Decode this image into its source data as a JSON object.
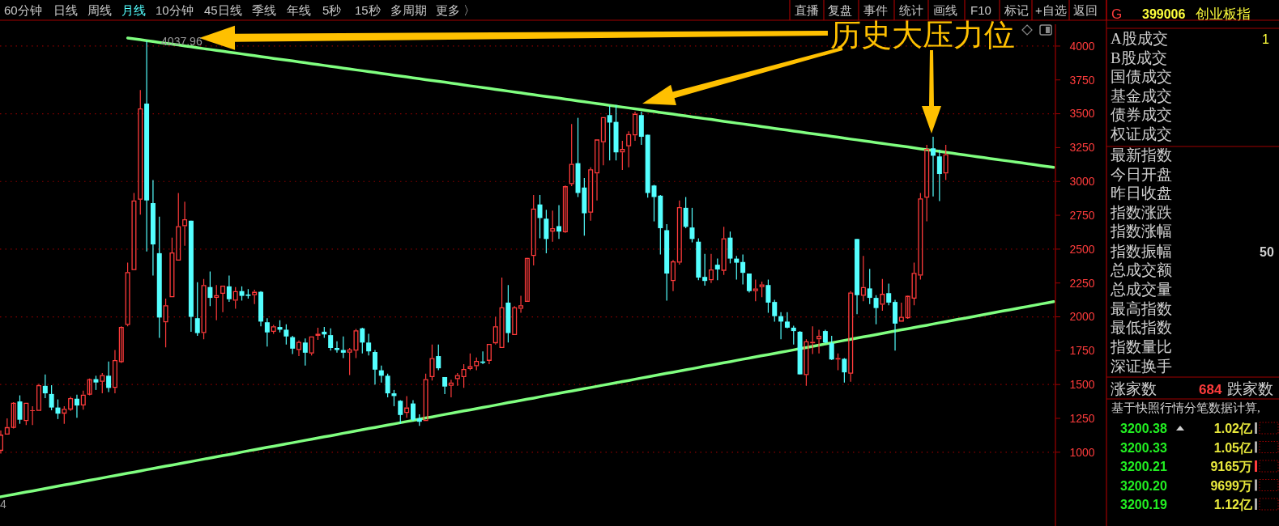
{
  "chart_data": [
    {
      "type": "candlestick",
      "categories": [
        null,
        null,
        null,
        null,
        null,
        null,
        null,
        null,
        null,
        null,
        null,
        null,
        null,
        null,
        null,
        null,
        null,
        null,
        null,
        null,
        null,
        null,
        null,
        null,
        null,
        null,
        null,
        null,
        null,
        null,
        null,
        null,
        null,
        null,
        null,
        null,
        null,
        null,
        null,
        null,
        null,
        null,
        null,
        null,
        null,
        null,
        null,
        null,
        null,
        null,
        null,
        null,
        null,
        null,
        null,
        null,
        null,
        null,
        null,
        null,
        null,
        null,
        null,
        null,
        null,
        null,
        null,
        null,
        null,
        null,
        null,
        null,
        null,
        null,
        null,
        null,
        null,
        null,
        null,
        null,
        null,
        null,
        null,
        null,
        null,
        null,
        null,
        null,
        null,
        null,
        null,
        null,
        null,
        null,
        null,
        null,
        null,
        null,
        null,
        null,
        null,
        null,
        null,
        null,
        null,
        null,
        null,
        null,
        null,
        null,
        null,
        null,
        null,
        null,
        null,
        null,
        null,
        null,
        null,
        null,
        null,
        null,
        null,
        null,
        null,
        null,
        null,
        null,
        null,
        null,
        null,
        null,
        null,
        null,
        null,
        null,
        null,
        null,
        null,
        null,
        null,
        null,
        null,
        null,
        null,
        null,
        null,
        null,
        null,
        null,
        null,
        null,
        null,
        null,
        null,
        null,
        null,
        null,
        null,
        null,
        null,
        null,
        null,
        null,
        null,
        null,
        null
      ],
      "ohlc": [
        [
          1010,
          1160,
          990,
          1130
        ],
        [
          1130,
          1250,
          1125,
          1185
        ],
        [
          1180,
          1370,
          1175,
          1365
        ],
        [
          1375,
          1420,
          1210,
          1240
        ],
        [
          1230,
          1370,
          1200,
          1365
        ],
        [
          1305,
          1340,
          1200,
          1310
        ],
        [
          1305,
          1505,
          1300,
          1495
        ],
        [
          1490,
          1575,
          1400,
          1435
        ],
        [
          1430,
          1495,
          1310,
          1330
        ],
        [
          1330,
          1390,
          1245,
          1285
        ],
        [
          1285,
          1340,
          1210,
          1320
        ],
        [
          1315,
          1410,
          1305,
          1400
        ],
        [
          1395,
          1425,
          1255,
          1345
        ],
        [
          1345,
          1455,
          1315,
          1425
        ],
        [
          1425,
          1545,
          1420,
          1540
        ],
        [
          1540,
          1565,
          1460,
          1515
        ],
        [
          1520,
          1585,
          1435,
          1570
        ],
        [
          1565,
          1670,
          1445,
          1475
        ],
        [
          1475,
          1755,
          1435,
          1680
        ],
        [
          1665,
          1930,
          1660,
          1925
        ],
        [
          1940,
          2400,
          1930,
          2330
        ],
        [
          2345,
          2915,
          2340,
          2860
        ],
        [
          2865,
          3675,
          2755,
          3540
        ],
        [
          3575,
          4037.96,
          2483,
          2860
        ],
        [
          2840,
          3010,
          2305,
          2535
        ],
        [
          2470,
          2740,
          1845,
          1995
        ],
        [
          1960,
          2135,
          1775,
          2085
        ],
        [
          2145,
          2585,
          2140,
          2475
        ],
        [
          2415,
          2915,
          2410,
          2670
        ],
        [
          2670,
          2850,
          2525,
          2720
        ],
        [
          2710,
          2710,
          1890,
          2000
        ],
        [
          1990,
          2255,
          1860,
          1880
        ],
        [
          1880,
          2280,
          1835,
          2235
        ],
        [
          2220,
          2335,
          2080,
          2140
        ],
        [
          2140,
          2235,
          1975,
          2160
        ],
        [
          2170,
          2235,
          2035,
          2230
        ],
        [
          2225,
          2305,
          2110,
          2130
        ],
        [
          2120,
          2220,
          2060,
          2190
        ],
        [
          2190,
          2225,
          2120,
          2155
        ],
        [
          2165,
          2205,
          2135,
          2155
        ],
        [
          2160,
          2200,
          2095,
          2185
        ],
        [
          2185,
          2190,
          1930,
          1965
        ],
        [
          1960,
          1990,
          1780,
          1885
        ],
        [
          1890,
          1940,
          1875,
          1930
        ],
        [
          1925,
          1975,
          1885,
          1905
        ],
        [
          1905,
          1945,
          1795,
          1855
        ],
        [
          1850,
          1860,
          1725,
          1765
        ],
        [
          1755,
          1825,
          1710,
          1815
        ],
        [
          1810,
          1840,
          1640,
          1735
        ],
        [
          1730,
          1855,
          1715,
          1855
        ],
        [
          1860,
          1920,
          1830,
          1875
        ],
        [
          1890,
          1925,
          1845,
          1870
        ],
        [
          1865,
          1915,
          1750,
          1770
        ],
        [
          1770,
          1820,
          1735,
          1755
        ],
        [
          1755,
          1855,
          1695,
          1735
        ],
        [
          1735,
          1770,
          1570,
          1760
        ],
        [
          1750,
          1910,
          1695,
          1900
        ],
        [
          1915,
          1920,
          1730,
          1810
        ],
        [
          1810,
          1875,
          1715,
          1745
        ],
        [
          1740,
          1755,
          1500,
          1610
        ],
        [
          1605,
          1640,
          1515,
          1565
        ],
        [
          1565,
          1580,
          1405,
          1435
        ],
        [
          1435,
          1460,
          1340,
          1415
        ],
        [
          1380,
          1385,
          1210,
          1275
        ],
        [
          1290,
          1415,
          1255,
          1330
        ],
        [
          1360,
          1385,
          1230,
          1240
        ],
        [
          1250,
          1280,
          1195,
          1225
        ],
        [
          1230,
          1580,
          1225,
          1540
        ],
        [
          1555,
          1795,
          1530,
          1695
        ],
        [
          1710,
          1795,
          1605,
          1620
        ],
        [
          1555,
          1555,
          1430,
          1485
        ],
        [
          1490,
          1535,
          1405,
          1515
        ],
        [
          1540,
          1585,
          1490,
          1570
        ],
        [
          1555,
          1650,
          1475,
          1615
        ],
        [
          1615,
          1730,
          1605,
          1635
        ],
        [
          1635,
          1700,
          1605,
          1675
        ],
        [
          1670,
          1745,
          1650,
          1660
        ],
        [
          1675,
          1805,
          1650,
          1800
        ],
        [
          1805,
          2000,
          1795,
          1930
        ],
        [
          1770,
          2290,
          1770,
          2070
        ],
        [
          2105,
          2235,
          1810,
          1880
        ],
        [
          1865,
          2080,
          1860,
          2070
        ],
        [
          2060,
          2155,
          2030,
          2085
        ],
        [
          2110,
          2435,
          2110,
          2435
        ],
        [
          2450,
          2900,
          2380,
          2800
        ],
        [
          2830,
          2900,
          2580,
          2730
        ],
        [
          2725,
          2790,
          2470,
          2575
        ],
        [
          2630,
          2785,
          2555,
          2655
        ],
        [
          2670,
          2825,
          2575,
          2630
        ],
        [
          2625,
          2970,
          2620,
          2965
        ],
        [
          2980,
          3425,
          2965,
          3130
        ],
        [
          3135,
          3470,
          2885,
          2915
        ],
        [
          2955,
          3025,
          2600,
          2765
        ],
        [
          2770,
          3105,
          2710,
          3090
        ],
        [
          3060,
          3310,
          2860,
          3310
        ],
        [
          3290,
          3480,
          3120,
          3475
        ],
        [
          3490,
          3560,
          3155,
          3435
        ],
        [
          3440,
          3565,
          3155,
          3215
        ],
        [
          3215,
          3300,
          3085,
          3240
        ],
        [
          3260,
          3370,
          3105,
          3350
        ],
        [
          3340,
          3515,
          3300,
          3500
        ],
        [
          3490,
          3515,
          3270,
          3330
        ],
        [
          3345,
          3345,
          2880,
          2915
        ],
        [
          2970,
          2975,
          2705,
          2885
        ],
        [
          2895,
          2900,
          2460,
          2655
        ],
        [
          2640,
          2685,
          2120,
          2320
        ],
        [
          2265,
          2420,
          2190,
          2410
        ],
        [
          2400,
          2860,
          2385,
          2810
        ],
        [
          2805,
          2885,
          2655,
          2665
        ],
        [
          2660,
          2805,
          2550,
          2575
        ],
        [
          2555,
          2580,
          2270,
          2290
        ],
        [
          2295,
          2465,
          2230,
          2265
        ],
        [
          2270,
          2465,
          2250,
          2350
        ],
        [
          2385,
          2430,
          2270,
          2350
        ],
        [
          2340,
          2665,
          2310,
          2580
        ],
        [
          2585,
          2630,
          2395,
          2430
        ],
        [
          2430,
          2450,
          2275,
          2400
        ],
        [
          2405,
          2460,
          2240,
          2325
        ],
        [
          2320,
          2320,
          2180,
          2190
        ],
        [
          2190,
          2275,
          2115,
          2210
        ],
        [
          2220,
          2260,
          2145,
          2240
        ],
        [
          2235,
          2275,
          2030,
          2105
        ],
        [
          2110,
          2125,
          1965,
          2005
        ],
        [
          2005,
          2035,
          1835,
          1965
        ],
        [
          1965,
          2035,
          1915,
          1920
        ],
        [
          1920,
          1935,
          1795,
          1895
        ],
        [
          1890,
          1895,
          1575,
          1575
        ],
        [
          1570,
          1835,
          1490,
          1820
        ],
        [
          1805,
          1930,
          1725,
          1815
        ],
        [
          1835,
          1905,
          1730,
          1860
        ],
        [
          1895,
          1905,
          1805,
          1810
        ],
        [
          1805,
          1860,
          1680,
          1685
        ],
        [
          1685,
          1730,
          1605,
          1695
        ],
        [
          1690,
          1695,
          1515,
          1590
        ],
        [
          1580,
          2190,
          1520,
          2180
        ],
        [
          2575,
          2575,
          2020,
          2160
        ],
        [
          2155,
          2450,
          2115,
          2220
        ],
        [
          2210,
          2355,
          2095,
          2140
        ],
        [
          2140,
          2160,
          1945,
          2065
        ],
        [
          2090,
          2280,
          2045,
          2170
        ],
        [
          2175,
          2245,
          2085,
          2105
        ],
        [
          2110,
          2125,
          1750,
          1950
        ],
        [
          1965,
          2105,
          1960,
          2000
        ],
        [
          1990,
          2155,
          1985,
          2155
        ],
        [
          2135,
          2400,
          2085,
          2325
        ],
        [
          2305,
          2915,
          2275,
          2875
        ],
        [
          2880,
          3270,
          2705,
          3240
        ],
        [
          3245,
          3330,
          2890,
          3190
        ],
        [
          3185,
          3235,
          2855,
          3055
        ],
        [
          3060,
          3270,
          3010,
          3200
        ],
        null,
        null,
        null,
        null,
        null,
        null,
        null,
        null,
        null,
        null,
        null,
        null,
        null,
        null,
        null,
        null,
        null
      ],
      "series": [
        {
          "type": "line",
          "color": "#80ff80",
          "values": [
            null,
            null,
            null,
            null,
            null,
            null,
            null,
            null,
            null,
            null,
            null,
            null,
            null,
            null,
            null,
            null,
            null,
            null,
            null,
            null,
            4060,
            4053,
            4047,
            4040,
            4034,
            4027,
            4021,
            4014,
            4008,
            4001,
            3995,
            3988,
            3981,
            3975,
            3968,
            3962,
            3955,
            3949,
            3942,
            3936,
            3929,
            3922,
            3916,
            3909,
            3903,
            3896,
            3890,
            3883,
            3877,
            3870,
            3864,
            3857,
            3850,
            3844,
            3837,
            3831,
            3824,
            3818,
            3811,
            3805,
            3798,
            3792,
            3785,
            3778,
            3772,
            3765,
            3759,
            3752,
            3746,
            3739,
            3733,
            3726,
            3720,
            3713,
            3706,
            3700,
            3693,
            3687,
            3680,
            3674,
            3667,
            3661,
            3654,
            3647,
            3641,
            3634,
            3628,
            3621,
            3615,
            3608,
            3602,
            3595,
            3589,
            3582,
            3575,
            3569,
            3562,
            3556,
            3549,
            3543,
            3536,
            3530,
            3523,
            3517,
            3510,
            3503,
            3497,
            3490,
            3484,
            3477,
            3471,
            3464,
            3458,
            3451,
            3444,
            3438,
            3431,
            3425,
            3418,
            3412,
            3405,
            3399,
            3392,
            3386,
            3379,
            3372,
            3366,
            3359,
            3353,
            3346,
            3340,
            3333,
            3327,
            3320,
            3313,
            3307,
            3300,
            3294,
            3287,
            3281,
            3274,
            3268,
            3261,
            3255,
            3248,
            3241,
            3235,
            3228,
            3222,
            3215,
            3209,
            3202,
            3196,
            3189,
            3182,
            3176,
            3169,
            3163,
            3156,
            3150,
            3143,
            3137,
            3130,
            3124,
            3117,
            3111,
            3104
          ]
        },
        {
          "type": "line",
          "color": "#80ff80",
          "values": [
            671,
            680,
            688,
            697,
            706,
            714,
            723,
            732,
            740,
            749,
            758,
            766,
            775,
            784,
            793,
            801,
            810,
            819,
            827,
            836,
            845,
            853,
            862,
            871,
            879,
            888,
            897,
            905,
            914,
            923,
            931,
            940,
            949,
            957,
            966,
            975,
            983,
            992,
            1001,
            1010,
            1018,
            1027,
            1036,
            1044,
            1053,
            1062,
            1070,
            1079,
            1088,
            1096,
            1105,
            1114,
            1122,
            1131,
            1140,
            1148,
            1157,
            1166,
            1175,
            1183,
            1192,
            1201,
            1209,
            1218,
            1227,
            1235,
            1244,
            1253,
            1261,
            1270,
            1279,
            1287,
            1296,
            1305,
            1313,
            1322,
            1331,
            1339,
            1348,
            1357,
            1366,
            1374,
            1383,
            1392,
            1400,
            1409,
            1418,
            1426,
            1435,
            1444,
            1452,
            1461,
            1470,
            1478,
            1487,
            1496,
            1504,
            1513,
            1522,
            1530,
            1539,
            1548,
            1556,
            1565,
            1574,
            1583,
            1591,
            1600,
            1609,
            1617,
            1626,
            1635,
            1643,
            1652,
            1661,
            1669,
            1678,
            1687,
            1695,
            1704,
            1713,
            1721,
            1730,
            1739,
            1747,
            1756,
            1765,
            1773,
            1782,
            1791,
            1800,
            1808,
            1817,
            1826,
            1834,
            1843,
            1852,
            1860,
            1869,
            1878,
            1886,
            1895,
            1904,
            1912,
            1921,
            1930,
            1938,
            1947,
            1956,
            1964,
            1973,
            1982,
            1990,
            1999,
            2008,
            2017,
            2025,
            2034,
            2043,
            2051,
            2060,
            2069,
            2077,
            2086,
            2095,
            2103,
            2112
          ]
        }
      ],
      "ylim": [
        455,
        4161
      ],
      "yticks": [
        1000,
        1250,
        1500,
        1750,
        2000,
        2250,
        2500,
        2750,
        3000,
        3250,
        3500,
        3750,
        4000
      ],
      "grid": "y",
      "annotations": [
        "历史大压力位",
        {
          "text": "4037.96",
          "y": 4037.96
        },
        "4"
      ]
    },
    {
      "type": "other",
      "annotations": [
        "G",
        "399006",
        "创业板指",
        "A股成交",
        "B股成交",
        "国债成交",
        "基金成交",
        "债券成交",
        "权证成交",
        "最新指数",
        "今日开盘",
        "昨日收盘",
        "指数涨跌",
        "指数涨幅",
        "指数振幅",
        "总成交额",
        "总成交量",
        "最高指数",
        "最低指数",
        "指数量比",
        "深证换手",
        "1",
        "50",
        "涨家数",
        "684",
        "跌家数",
        "基于快照行情分笔数据计算,",
        "3200.38",
        "1.02亿",
        "3200.33",
        "1.05亿",
        "3200.21",
        "9165万",
        "3200.20",
        "9699万",
        "3200.19",
        "1.12亿"
      ]
    },
    {
      "type": "other",
      "annotations": [
        "60分钟",
        "日线",
        "周线",
        "月线",
        "10分钟",
        "45日线",
        "季线",
        "年线",
        "5秒",
        "15秒",
        "多周期",
        "更多 〉",
        "直播",
        "复盘",
        "事件",
        "统计",
        "画线",
        "F10",
        "标记",
        "+自选",
        "返回"
      ]
    }
  ]
}
